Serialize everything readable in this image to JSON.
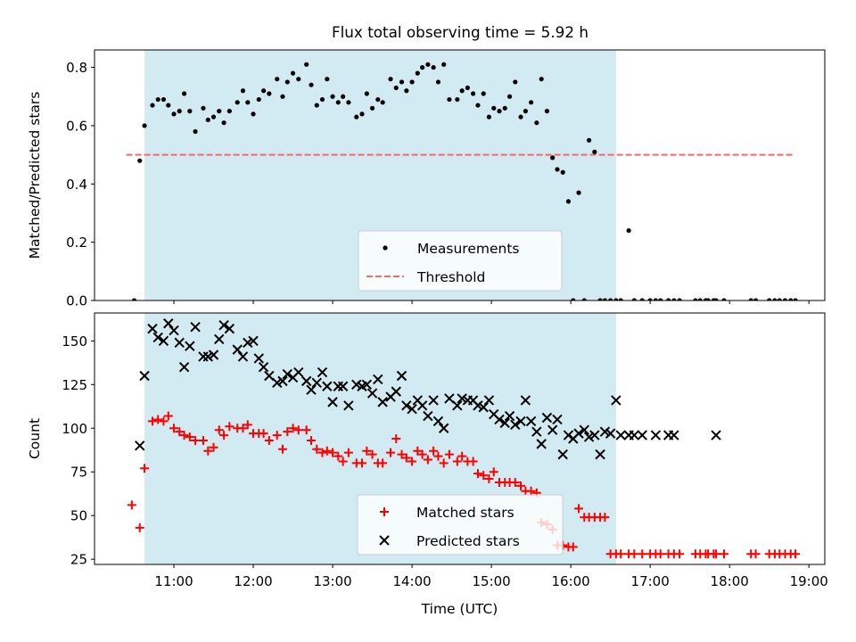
{
  "title": "Flux total observing time = 5.92 h",
  "chart_data": [
    {
      "type": "scatter",
      "title": "Flux total observing time = 5.92 h",
      "ylabel": "Matched/Predicted stars",
      "xlabel": "",
      "xlim": [
        10.0,
        19.2
      ],
      "ylim": [
        0,
        0.86
      ],
      "yticks": [
        "0.0",
        "0.2",
        "0.4",
        "0.6",
        "0.8"
      ],
      "ytick_values": [
        0,
        0.2,
        0.4,
        0.6,
        0.8
      ],
      "shaded_span": [
        10.63,
        16.57
      ],
      "shade_color": "#add8e6",
      "grid": false,
      "legend_position": "lower-center",
      "legend": [
        {
          "label": "Measurements",
          "marker": "dot",
          "color": "#000000"
        },
        {
          "label": "Threshold",
          "marker": "dashed-line",
          "color": "#ff6666"
        }
      ],
      "threshold": {
        "value": 0.5,
        "x_range": [
          10.4,
          18.8
        ]
      },
      "series": [
        {
          "name": "Measurements",
          "color": "#000000",
          "x": [
            10.5,
            10.57,
            10.63,
            10.73,
            10.8,
            10.87,
            10.93,
            11.0,
            11.07,
            11.13,
            11.2,
            11.27,
            11.37,
            11.43,
            11.5,
            11.57,
            11.63,
            11.7,
            11.8,
            11.87,
            11.93,
            12.0,
            12.07,
            12.13,
            12.2,
            12.3,
            12.37,
            12.43,
            12.5,
            12.57,
            12.67,
            12.73,
            12.8,
            12.87,
            12.93,
            13.0,
            13.07,
            13.13,
            13.2,
            13.3,
            13.37,
            13.43,
            13.5,
            13.57,
            13.63,
            13.73,
            13.8,
            13.87,
            13.93,
            14.0,
            14.07,
            14.13,
            14.2,
            14.27,
            14.33,
            14.4,
            14.47,
            14.57,
            14.63,
            14.7,
            14.77,
            14.83,
            14.9,
            14.97,
            15.03,
            15.1,
            15.17,
            15.23,
            15.3,
            15.37,
            15.43,
            15.5,
            15.57,
            15.63,
            15.7,
            15.77,
            15.83,
            15.9,
            15.97,
            16.03,
            16.1,
            16.17,
            16.23,
            16.3,
            16.37,
            16.43,
            16.5,
            16.57,
            16.63,
            16.73,
            16.8,
            16.9,
            17.0,
            17.07,
            17.13,
            17.23,
            17.3,
            17.37,
            17.57,
            17.63,
            17.7,
            17.73,
            17.8,
            17.83,
            17.93,
            18.27,
            18.33,
            18.5,
            18.57,
            18.63,
            18.7,
            18.77,
            18.83
          ],
          "y": [
            0.0,
            0.48,
            0.6,
            0.67,
            0.69,
            0.69,
            0.67,
            0.64,
            0.65,
            0.71,
            0.65,
            0.58,
            0.66,
            0.62,
            0.63,
            0.65,
            0.61,
            0.65,
            0.68,
            0.72,
            0.68,
            0.64,
            0.69,
            0.72,
            0.71,
            0.76,
            0.7,
            0.75,
            0.78,
            0.76,
            0.81,
            0.74,
            0.67,
            0.69,
            0.76,
            0.7,
            0.68,
            0.7,
            0.68,
            0.63,
            0.64,
            0.71,
            0.66,
            0.69,
            0.68,
            0.76,
            0.73,
            0.75,
            0.72,
            0.75,
            0.78,
            0.8,
            0.81,
            0.8,
            0.75,
            0.81,
            0.69,
            0.69,
            0.72,
            0.73,
            0.71,
            0.67,
            0.71,
            0.63,
            0.66,
            0.65,
            0.66,
            0.7,
            0.75,
            0.63,
            0.65,
            0.68,
            0.61,
            0.76,
            0.65,
            0.49,
            0.45,
            0.44,
            0.34,
            0.0,
            0.37,
            0.0,
            0.55,
            0.51,
            0.0,
            0.0,
            0.0,
            0.0,
            0.0,
            0.24,
            0.0,
            0.0,
            0.0,
            0.0,
            0.0,
            0.0,
            0.0,
            0.0,
            0.0,
            0.0,
            0.0,
            0.0,
            0.0,
            0.0,
            0.0,
            0.0,
            0.0,
            0.0,
            0.0,
            0.0,
            0.0,
            0.0,
            0.0
          ]
        }
      ]
    },
    {
      "type": "scatter",
      "ylabel": "Count",
      "xlabel": "Time (UTC)",
      "xlim": [
        10.0,
        19.2
      ],
      "ylim": [
        22,
        166
      ],
      "yticks": [
        "25",
        "50",
        "75",
        "100",
        "125",
        "150"
      ],
      "ytick_values": [
        25,
        50,
        75,
        100,
        125,
        150
      ],
      "xticks": [
        "11:00",
        "12:00",
        "13:00",
        "14:00",
        "15:00",
        "16:00",
        "17:00",
        "18:00",
        "19:00"
      ],
      "xtick_values": [
        11,
        12,
        13,
        14,
        15,
        16,
        17,
        18,
        19
      ],
      "shaded_span": [
        10.63,
        16.57
      ],
      "shade_color": "#add8e6",
      "grid": false,
      "legend_position": "lower-center",
      "legend": [
        {
          "label": "Matched stars",
          "marker": "plus",
          "color": "#ff0000"
        },
        {
          "label": "Predicted stars",
          "marker": "x",
          "color": "#000000"
        }
      ],
      "series": [
        {
          "name": "Matched stars",
          "marker": "plus",
          "color": "#ff0000",
          "x": [
            10.47,
            10.57,
            10.63,
            10.73,
            10.8,
            10.87,
            10.93,
            11.0,
            11.07,
            11.13,
            11.2,
            11.27,
            11.37,
            11.43,
            11.5,
            11.57,
            11.63,
            11.7,
            11.8,
            11.87,
            11.93,
            12.0,
            12.07,
            12.13,
            12.2,
            12.3,
            12.37,
            12.43,
            12.5,
            12.57,
            12.67,
            12.73,
            12.8,
            12.87,
            12.93,
            13.0,
            13.07,
            13.13,
            13.2,
            13.3,
            13.37,
            13.43,
            13.5,
            13.57,
            13.63,
            13.73,
            13.8,
            13.87,
            13.93,
            14.0,
            14.07,
            14.13,
            14.2,
            14.27,
            14.33,
            14.4,
            14.47,
            14.57,
            14.63,
            14.7,
            14.77,
            14.83,
            14.9,
            14.97,
            15.03,
            15.1,
            15.17,
            15.23,
            15.3,
            15.37,
            15.43,
            15.5,
            15.57,
            15.63,
            15.7,
            15.77,
            15.83,
            15.9,
            15.97,
            16.03,
            16.1,
            16.17,
            16.23,
            16.3,
            16.37,
            16.43,
            16.5,
            16.57,
            16.63,
            16.73,
            16.8,
            16.9,
            17.0,
            17.07,
            17.13,
            17.23,
            17.3,
            17.37,
            17.57,
            17.63,
            17.7,
            17.73,
            17.8,
            17.83,
            17.93,
            18.27,
            18.33,
            18.5,
            18.57,
            18.63,
            18.7,
            18.77,
            18.83
          ],
          "y": [
            56,
            43,
            77,
            104,
            105,
            104,
            107,
            100,
            98,
            96,
            95,
            93,
            93,
            87,
            89,
            99,
            96,
            101,
            100,
            100,
            102,
            97,
            97,
            97,
            93,
            96,
            88,
            98,
            100,
            99,
            99,
            93,
            88,
            86,
            87,
            86,
            84,
            81,
            86,
            80,
            80,
            87,
            85,
            80,
            80,
            86,
            94,
            85,
            83,
            81,
            87,
            85,
            82,
            87,
            84,
            80,
            85,
            81,
            84,
            81,
            81,
            74,
            73,
            71,
            75,
            69,
            69,
            69,
            69,
            67,
            64,
            64,
            63,
            46,
            45,
            42,
            33,
            33,
            32,
            32,
            54,
            49,
            49,
            49,
            49,
            49,
            28,
            28,
            28,
            28,
            28,
            28,
            28,
            28,
            28,
            28,
            28,
            28,
            28,
            28,
            28,
            28,
            28,
            28,
            28,
            28,
            28,
            28,
            28,
            28,
            28,
            28,
            28
          ]
        },
        {
          "name": "Predicted stars",
          "marker": "x",
          "color": "#000000",
          "x": [
            10.57,
            10.63,
            10.73,
            10.8,
            10.87,
            10.93,
            11.0,
            11.07,
            11.13,
            11.2,
            11.27,
            11.37,
            11.43,
            11.5,
            11.57,
            11.63,
            11.7,
            11.8,
            11.87,
            11.93,
            12.0,
            12.07,
            12.13,
            12.2,
            12.3,
            12.37,
            12.43,
            12.5,
            12.57,
            12.67,
            12.73,
            12.8,
            12.87,
            12.93,
            13.0,
            13.07,
            13.13,
            13.2,
            13.3,
            13.37,
            13.43,
            13.5,
            13.57,
            13.63,
            13.73,
            13.8,
            13.87,
            13.93,
            14.0,
            14.07,
            14.13,
            14.2,
            14.27,
            14.33,
            14.4,
            14.47,
            14.57,
            14.63,
            14.7,
            14.77,
            14.83,
            14.9,
            14.97,
            15.03,
            15.1,
            15.17,
            15.23,
            15.3,
            15.37,
            15.43,
            15.5,
            15.57,
            15.63,
            15.7,
            15.77,
            15.83,
            15.9,
            15.97,
            16.03,
            16.1,
            16.17,
            16.23,
            16.3,
            16.37,
            16.43,
            16.5,
            16.57,
            16.63,
            16.73,
            16.8,
            16.9,
            17.07,
            17.23,
            17.3,
            17.83
          ],
          "y": [
            90,
            130,
            157,
            152,
            150,
            160,
            156,
            149,
            135,
            147,
            158,
            141,
            141,
            142,
            151,
            159,
            157,
            145,
            141,
            149,
            150,
            140,
            135,
            130,
            126,
            127,
            131,
            129,
            132,
            127,
            122,
            126,
            132,
            124,
            115,
            124,
            124,
            113,
            125,
            124,
            125,
            120,
            128,
            115,
            118,
            121,
            130,
            113,
            111,
            116,
            113,
            107,
            116,
            104,
            100,
            117,
            113,
            117,
            116,
            116,
            113,
            112,
            116,
            108,
            105,
            103,
            107,
            102,
            104,
            116,
            104,
            98,
            91,
            106,
            99,
            105,
            85,
            96,
            94,
            97,
            99,
            95,
            96,
            85,
            98,
            97,
            116,
            96,
            96,
            96,
            96,
            96,
            96,
            96,
            96
          ]
        }
      ]
    }
  ]
}
